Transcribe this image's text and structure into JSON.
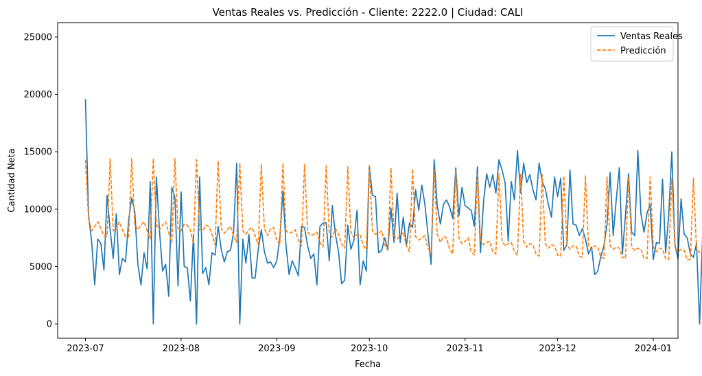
{
  "chart_data": {
    "type": "line",
    "title": "Ventas Reales vs. Predicción - Cliente: 2222.0 | Ciudad: CALI",
    "xlabel": "Fecha",
    "ylabel": "Cantidad Neta",
    "x_start": "2023-07-01",
    "x_end": "2023-12-31",
    "xlim": [
      "2023-06-22",
      "2024-01-09"
    ],
    "ylim": [
      -1250,
      26250
    ],
    "x_ticks": [
      "2023-07",
      "2023-08",
      "2023-09",
      "2023-10",
      "2023-11",
      "2023-12",
      "2024-01"
    ],
    "y_ticks": [
      0,
      5000,
      10000,
      15000,
      20000,
      25000
    ],
    "grid": false,
    "legend_position": "top-right",
    "series": [
      {
        "name": "Ventas Reales",
        "color": "#1f77b4",
        "style": "solid",
        "values": [
          19600,
          9500,
          7200,
          3400,
          7400,
          7000,
          4700,
          11200,
          8200,
          5700,
          9600,
          4300,
          5700,
          5400,
          9000,
          11000,
          9800,
          5200,
          3400,
          6200,
          4800,
          12400,
          0,
          12800,
          8100,
          4600,
          5200,
          2400,
          11900,
          11000,
          3300,
          11500,
          5000,
          4900,
          2000,
          7800,
          0,
          12800,
          4400,
          4900,
          3400,
          6200,
          6000,
          8500,
          6500,
          5400,
          6300,
          6400,
          8000,
          14000,
          0,
          7400,
          5300,
          7800,
          4000,
          4000,
          6500,
          8200,
          6300,
          5300,
          5400,
          4900,
          5500,
          7500,
          11600,
          6800,
          4300,
          5500,
          4900,
          4200,
          8500,
          8400,
          6800,
          5700,
          6100,
          3400,
          8500,
          8800,
          8800,
          5500,
          10300,
          7800,
          6300,
          3500,
          3800,
          8600,
          6500,
          7300,
          9900,
          3400,
          5500,
          4600,
          13800,
          11200,
          11100,
          6200,
          6400,
          7500,
          6500,
          10100,
          7100,
          11400,
          7100,
          9300,
          6800,
          8800,
          8400,
          11700,
          9900,
          12100,
          10400,
          7800,
          5200,
          14300,
          10300,
          8700,
          10400,
          10800,
          10200,
          9200,
          13600,
          9400,
          11900,
          10300,
          10100,
          9900,
          8500,
          13700,
          6200,
          10700,
          13100,
          11900,
          13000,
          11400,
          14300,
          13400,
          12300,
          7200,
          12400,
          10800,
          15100,
          11400,
          14000,
          12300,
          13000,
          11700,
          10800,
          14000,
          12400,
          11800,
          10400,
          9300,
          12800,
          11100,
          12700,
          6400,
          6900,
          13400,
          8700,
          8600,
          7700,
          8300,
          7400,
          6100,
          6700,
          4300,
          4600,
          5900,
          6800,
          8700,
          13200,
          7700,
          10800,
          13600,
          6100,
          9500,
          13100,
          8000,
          7700,
          15100,
          9600,
          8000,
          9700,
          10400,
          5600,
          7100,
          7000,
          12600,
          6200,
          9500,
          15000,
          6900,
          5700,
          10900,
          7800,
          7500,
          6100,
          5800,
          7000,
          0,
          8000,
          10100,
          11300,
          8300,
          5100,
          5500,
          9300,
          12800,
          7000,
          8600
        ]
      },
      {
        "name": "Predicción",
        "color": "#ff7f0e",
        "style": "dashed",
        "values": [
          14300,
          9200,
          8100,
          8500,
          8900,
          8300,
          7700,
          7600,
          14400,
          8100,
          8200,
          8900,
          8200,
          7600,
          7600,
          14400,
          8700,
          8200,
          8600,
          8900,
          8100,
          7400,
          14400,
          8600,
          8200,
          8600,
          8900,
          7900,
          7100,
          14400,
          8300,
          8100,
          8700,
          8600,
          8200,
          7000,
          14300,
          8200,
          8100,
          8600,
          8500,
          7800,
          6900,
          14200,
          8300,
          7900,
          8200,
          8500,
          7700,
          7100,
          14000,
          8100,
          7800,
          8200,
          8400,
          7700,
          6900,
          13900,
          8300,
          7700,
          8300,
          8400,
          7300,
          6900,
          14000,
          8100,
          7900,
          8000,
          8200,
          7300,
          6800,
          13900,
          8000,
          7700,
          7800,
          8000,
          7100,
          6700,
          13800,
          7900,
          7600,
          8300,
          7800,
          7000,
          6600,
          13700,
          8000,
          7500,
          7800,
          7800,
          6800,
          6500,
          13800,
          8100,
          7800,
          7900,
          8100,
          6900,
          6400,
          13600,
          7700,
          7400,
          7700,
          8000,
          6800,
          6300,
          13500,
          7600,
          7300,
          7500,
          7700,
          6600,
          6200,
          13400,
          7800,
          7100,
          7600,
          7500,
          6500,
          6100,
          13300,
          7500,
          7000,
          7200,
          7500,
          6300,
          6000,
          13200,
          7300,
          6900,
          7100,
          7200,
          6300,
          6100,
          13100,
          7200,
          6800,
          7000,
          7100,
          6300,
          6000,
          13100,
          7200,
          6700,
          7000,
          6900,
          6100,
          5900,
          13000,
          7000,
          6600,
          6900,
          6800,
          6000,
          5900,
          12900,
          6900,
          6500,
          6800,
          6800,
          5900,
          5800,
          12900,
          6800,
          6500,
          6800,
          6700,
          5800,
          5700,
          12800,
          6800,
          6500,
          6700,
          6600,
          5800,
          5700,
          12800,
          6700,
          6400,
          6600,
          6500,
          5700,
          5700,
          12800,
          6700,
          6300,
          6600,
          6500,
          5700,
          5600,
          12700,
          6700,
          6300,
          6500,
          6400,
          5600,
          5600,
          12700,
          6600,
          6200,
          6500,
          6400,
          5600,
          5600,
          12700,
          6700,
          6300,
          6500,
          6300
        ]
      }
    ]
  }
}
